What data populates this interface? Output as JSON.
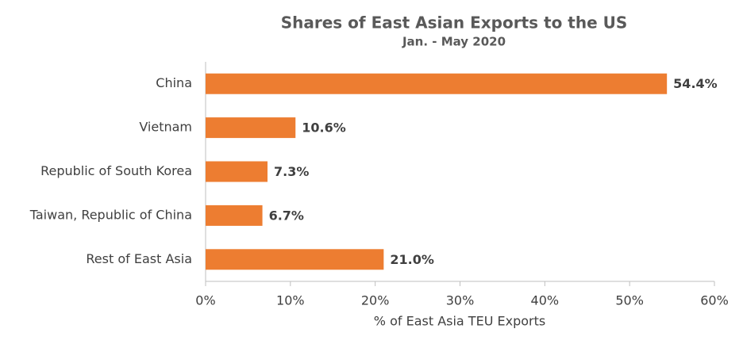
{
  "chart_data": {
    "type": "barh",
    "title": "Shares of East Asian Exports to the US",
    "subtitle": "Jan. - May 2020",
    "x_label": "% of East Asia TEU Exports",
    "categories": [
      "China",
      "Vietnam",
      "Republic of South Korea",
      "Taiwan, Republic of China",
      "Rest of East Asia"
    ],
    "values": [
      54.4,
      10.6,
      7.3,
      6.7,
      21.0
    ],
    "value_labels": [
      "54.4%",
      "10.6%",
      "7.3%",
      "6.7%",
      "21.0%"
    ],
    "color": "#ED7D31",
    "xlim": [
      0,
      60
    ],
    "xticks": [
      {
        "value": 0,
        "label": "0%"
      },
      {
        "value": 10,
        "label": "10%"
      },
      {
        "value": 20,
        "label": "20%"
      },
      {
        "value": 30,
        "label": "30%"
      },
      {
        "value": 40,
        "label": "40%"
      },
      {
        "value": 50,
        "label": "50%"
      },
      {
        "value": 60,
        "label": "60%"
      }
    ],
    "grid": false
  }
}
